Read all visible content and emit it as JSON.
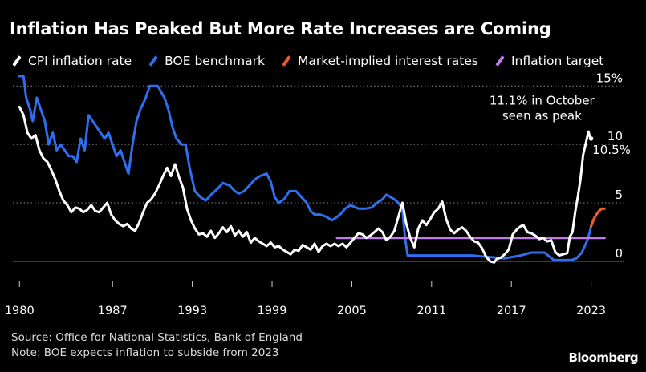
{
  "header": {
    "title": "Inflation Has Peaked But More Rate Increases are Coming"
  },
  "footer": {
    "source": "Source: Office for National Statistics, Bank of England",
    "note": "Note: BOE expects inflation to subside from 2023",
    "brand": "Bloomberg"
  },
  "chart_data": {
    "type": "line",
    "xlim": [
      1979.5,
      2025.5
    ],
    "ylim": [
      -0.9,
      15.5
    ],
    "grid": true,
    "legend_position": "top",
    "x_ticks": [
      {
        "value": 1980,
        "label": "1980"
      },
      {
        "value": 1987,
        "label": "1987"
      },
      {
        "value": 1993,
        "label": "1993"
      },
      {
        "value": 1999,
        "label": "1999"
      },
      {
        "value": 2005,
        "label": "2005"
      },
      {
        "value": 2011,
        "label": "2011"
      },
      {
        "value": 2017,
        "label": "2017"
      },
      {
        "value": 2023,
        "label": "2023"
      }
    ],
    "y_ticks": [
      {
        "value": 15,
        "label": "15%"
      },
      {
        "value": 10,
        "label": "10"
      },
      {
        "value": 5,
        "label": "5"
      },
      {
        "value": 0,
        "label": "0"
      }
    ],
    "series": [
      {
        "name": "CPI inflation rate",
        "color": "#ffffff",
        "points": [
          [
            1980.0,
            13.2
          ],
          [
            1980.3,
            12.5
          ],
          [
            1980.6,
            11.0
          ],
          [
            1980.9,
            10.5
          ],
          [
            1981.2,
            10.8
          ],
          [
            1981.5,
            9.5
          ],
          [
            1981.8,
            8.8
          ],
          [
            1982.1,
            8.5
          ],
          [
            1982.4,
            7.8
          ],
          [
            1982.7,
            7.0
          ],
          [
            1983.0,
            6.0
          ],
          [
            1983.3,
            5.2
          ],
          [
            1983.6,
            4.8
          ],
          [
            1983.9,
            4.2
          ],
          [
            1984.2,
            4.6
          ],
          [
            1984.5,
            4.5
          ],
          [
            1984.8,
            4.2
          ],
          [
            1985.1,
            4.4
          ],
          [
            1985.4,
            4.8
          ],
          [
            1985.7,
            4.3
          ],
          [
            1986.0,
            4.2
          ],
          [
            1986.3,
            4.6
          ],
          [
            1986.6,
            5.0
          ],
          [
            1986.9,
            4.0
          ],
          [
            1987.2,
            3.5
          ],
          [
            1987.5,
            3.2
          ],
          [
            1987.8,
            3.0
          ],
          [
            1988.1,
            3.2
          ],
          [
            1988.4,
            2.8
          ],
          [
            1988.7,
            2.6
          ],
          [
            1989.0,
            3.3
          ],
          [
            1989.3,
            4.2
          ],
          [
            1989.6,
            5.0
          ],
          [
            1989.9,
            5.3
          ],
          [
            1990.2,
            5.8
          ],
          [
            1990.5,
            6.5
          ],
          [
            1990.8,
            7.3
          ],
          [
            1991.1,
            8.0
          ],
          [
            1991.4,
            7.3
          ],
          [
            1991.7,
            8.3
          ],
          [
            1992.0,
            7.2
          ],
          [
            1992.3,
            6.3
          ],
          [
            1992.6,
            4.5
          ],
          [
            1992.9,
            3.5
          ],
          [
            1993.2,
            2.8
          ],
          [
            1993.5,
            2.3
          ],
          [
            1993.8,
            2.4
          ],
          [
            1994.1,
            2.1
          ],
          [
            1994.4,
            2.6
          ],
          [
            1994.7,
            2.0
          ],
          [
            1995.0,
            2.4
          ],
          [
            1995.3,
            2.9
          ],
          [
            1995.6,
            2.5
          ],
          [
            1995.9,
            3.0
          ],
          [
            1996.2,
            2.2
          ],
          [
            1996.5,
            2.6
          ],
          [
            1996.8,
            2.1
          ],
          [
            1997.1,
            2.5
          ],
          [
            1997.4,
            1.6
          ],
          [
            1997.7,
            2.0
          ],
          [
            1998.0,
            1.7
          ],
          [
            1998.3,
            1.5
          ],
          [
            1998.6,
            1.3
          ],
          [
            1998.9,
            1.6
          ],
          [
            1999.2,
            1.2
          ],
          [
            1999.5,
            1.3
          ],
          [
            1999.8,
            1.0
          ],
          [
            2000.1,
            0.8
          ],
          [
            2000.4,
            0.6
          ],
          [
            2000.7,
            1.0
          ],
          [
            2001.0,
            0.9
          ],
          [
            2001.3,
            1.4
          ],
          [
            2001.6,
            1.2
          ],
          [
            2001.9,
            1.0
          ],
          [
            2002.2,
            1.5
          ],
          [
            2002.5,
            0.8
          ],
          [
            2002.8,
            1.3
          ],
          [
            2003.1,
            1.5
          ],
          [
            2003.4,
            1.3
          ],
          [
            2003.7,
            1.5
          ],
          [
            2004.0,
            1.3
          ],
          [
            2004.3,
            1.5
          ],
          [
            2004.6,
            1.2
          ],
          [
            2004.9,
            1.6
          ],
          [
            2005.2,
            2.0
          ],
          [
            2005.5,
            2.4
          ],
          [
            2005.8,
            2.3
          ],
          [
            2006.1,
            2.0
          ],
          [
            2006.4,
            2.2
          ],
          [
            2006.7,
            2.5
          ],
          [
            2007.0,
            2.8
          ],
          [
            2007.3,
            2.5
          ],
          [
            2007.6,
            1.8
          ],
          [
            2007.9,
            2.1
          ],
          [
            2008.2,
            2.6
          ],
          [
            2008.5,
            3.8
          ],
          [
            2008.8,
            5.0
          ],
          [
            2009.1,
            3.2
          ],
          [
            2009.4,
            2.0
          ],
          [
            2009.7,
            1.2
          ],
          [
            2010.0,
            2.8
          ],
          [
            2010.3,
            3.5
          ],
          [
            2010.6,
            3.1
          ],
          [
            2010.9,
            3.6
          ],
          [
            2011.2,
            4.2
          ],
          [
            2011.5,
            4.5
          ],
          [
            2011.8,
            5.1
          ],
          [
            2012.1,
            3.6
          ],
          [
            2012.4,
            2.7
          ],
          [
            2012.7,
            2.4
          ],
          [
            2013.0,
            2.7
          ],
          [
            2013.3,
            2.9
          ],
          [
            2013.6,
            2.6
          ],
          [
            2013.9,
            2.1
          ],
          [
            2014.2,
            1.7
          ],
          [
            2014.5,
            1.6
          ],
          [
            2014.8,
            1.1
          ],
          [
            2015.1,
            0.4
          ],
          [
            2015.4,
            0.0
          ],
          [
            2015.7,
            -0.1
          ],
          [
            2015.9,
            0.2
          ],
          [
            2016.2,
            0.3
          ],
          [
            2016.5,
            0.6
          ],
          [
            2016.8,
            1.0
          ],
          [
            2017.1,
            2.3
          ],
          [
            2017.4,
            2.7
          ],
          [
            2017.7,
            3.0
          ],
          [
            2017.9,
            3.1
          ],
          [
            2018.2,
            2.5
          ],
          [
            2018.5,
            2.4
          ],
          [
            2018.8,
            2.2
          ],
          [
            2019.1,
            1.9
          ],
          [
            2019.4,
            2.0
          ],
          [
            2019.7,
            1.7
          ],
          [
            2020.0,
            1.8
          ],
          [
            2020.3,
            0.8
          ],
          [
            2020.6,
            0.5
          ],
          [
            2020.9,
            0.6
          ],
          [
            2021.2,
            0.7
          ],
          [
            2021.4,
            2.1
          ],
          [
            2021.6,
            2.5
          ],
          [
            2021.8,
            4.2
          ],
          [
            2022.0,
            5.5
          ],
          [
            2022.2,
            7.0
          ],
          [
            2022.4,
            9.1
          ],
          [
            2022.6,
            10.1
          ],
          [
            2022.8,
            11.1
          ],
          [
            2022.9,
            10.7
          ],
          [
            2023.0,
            10.5
          ]
        ]
      },
      {
        "name": "BOE benchmark",
        "color": "#2d6ff0",
        "points": [
          [
            1980.0,
            17.0
          ],
          [
            1980.3,
            16.0
          ],
          [
            1980.5,
            14.0
          ],
          [
            1980.8,
            13.0
          ],
          [
            1981.0,
            12.0
          ],
          [
            1981.3,
            14.0
          ],
          [
            1981.6,
            13.0
          ],
          [
            1981.9,
            12.0
          ],
          [
            1982.2,
            10.0
          ],
          [
            1982.5,
            11.0
          ],
          [
            1982.8,
            9.5
          ],
          [
            1983.1,
            10.0
          ],
          [
            1983.4,
            9.5
          ],
          [
            1983.7,
            9.0
          ],
          [
            1984.0,
            9.0
          ],
          [
            1984.3,
            8.5
          ],
          [
            1984.6,
            10.5
          ],
          [
            1984.9,
            9.5
          ],
          [
            1985.2,
            12.5
          ],
          [
            1985.5,
            12.0
          ],
          [
            1985.8,
            11.5
          ],
          [
            1986.1,
            11.0
          ],
          [
            1986.4,
            10.5
          ],
          [
            1986.7,
            11.0
          ],
          [
            1987.0,
            10.0
          ],
          [
            1987.3,
            9.0
          ],
          [
            1987.6,
            9.5
          ],
          [
            1987.9,
            8.5
          ],
          [
            1988.2,
            7.5
          ],
          [
            1988.5,
            10.0
          ],
          [
            1988.8,
            12.0
          ],
          [
            1989.1,
            13.0
          ],
          [
            1989.5,
            14.0
          ],
          [
            1989.8,
            15.0
          ],
          [
            1990.4,
            15.0
          ],
          [
            1990.9,
            14.0
          ],
          [
            1991.2,
            13.0
          ],
          [
            1991.5,
            11.5
          ],
          [
            1991.8,
            10.5
          ],
          [
            1992.2,
            10.0
          ],
          [
            1992.5,
            10.0
          ],
          [
            1992.8,
            8.0
          ],
          [
            1993.2,
            6.0
          ],
          [
            1993.6,
            5.5
          ],
          [
            1994.0,
            5.2
          ],
          [
            1994.5,
            5.8
          ],
          [
            1994.9,
            6.2
          ],
          [
            1995.3,
            6.7
          ],
          [
            1995.8,
            6.5
          ],
          [
            1996.2,
            6.0
          ],
          [
            1996.5,
            5.8
          ],
          [
            1996.9,
            6.0
          ],
          [
            1997.3,
            6.5
          ],
          [
            1997.7,
            7.0
          ],
          [
            1998.1,
            7.3
          ],
          [
            1998.6,
            7.5
          ],
          [
            1998.9,
            6.8
          ],
          [
            1999.2,
            5.5
          ],
          [
            1999.5,
            5.0
          ],
          [
            1999.9,
            5.3
          ],
          [
            2000.3,
            6.0
          ],
          [
            2000.8,
            6.0
          ],
          [
            2001.2,
            5.5
          ],
          [
            2001.6,
            5.0
          ],
          [
            2001.9,
            4.3
          ],
          [
            2002.2,
            4.0
          ],
          [
            2002.6,
            4.0
          ],
          [
            2003.1,
            3.8
          ],
          [
            2003.5,
            3.5
          ],
          [
            2003.9,
            3.8
          ],
          [
            2004.2,
            4.1
          ],
          [
            2004.5,
            4.5
          ],
          [
            2004.9,
            4.8
          ],
          [
            2005.5,
            4.5
          ],
          [
            2006.0,
            4.5
          ],
          [
            2006.5,
            4.6
          ],
          [
            2006.9,
            5.0
          ],
          [
            2007.3,
            5.3
          ],
          [
            2007.6,
            5.7
          ],
          [
            2007.9,
            5.5
          ],
          [
            2008.2,
            5.3
          ],
          [
            2008.5,
            5.0
          ],
          [
            2008.8,
            4.5
          ],
          [
            2009.0,
            2.0
          ],
          [
            2009.2,
            0.5
          ],
          [
            2010.0,
            0.5
          ],
          [
            2012.0,
            0.5
          ],
          [
            2014.0,
            0.5
          ],
          [
            2016.5,
            0.25
          ],
          [
            2017.7,
            0.5
          ],
          [
            2018.5,
            0.75
          ],
          [
            2019.5,
            0.75
          ],
          [
            2020.2,
            0.1
          ],
          [
            2020.8,
            0.1
          ],
          [
            2021.5,
            0.1
          ],
          [
            2021.9,
            0.25
          ],
          [
            2022.1,
            0.5
          ],
          [
            2022.3,
            0.75
          ],
          [
            2022.5,
            1.25
          ],
          [
            2022.7,
            1.75
          ],
          [
            2022.9,
            2.5
          ],
          [
            2023.0,
            3.0
          ]
        ]
      },
      {
        "name": "Market-implied interest rates",
        "color": "#ef5a2a",
        "points": [
          [
            2023.0,
            3.0
          ],
          [
            2023.2,
            3.6
          ],
          [
            2023.4,
            4.0
          ],
          [
            2023.6,
            4.3
          ],
          [
            2023.8,
            4.5
          ],
          [
            2024.0,
            4.5
          ]
        ]
      },
      {
        "name": "Inflation target",
        "color": "#c07be8",
        "points": [
          [
            2003.9,
            2.0
          ],
          [
            2024.0,
            2.0
          ]
        ]
      }
    ],
    "annotations": [
      {
        "id": "peak-callout",
        "lines": [
          "11.1% in October",
          "seen as peak"
        ],
        "x": 2019.3,
        "y": 13.4
      },
      {
        "id": "latest-label",
        "lines": [
          "10.5%"
        ],
        "x": 2023.1,
        "y": 9.2
      }
    ]
  }
}
